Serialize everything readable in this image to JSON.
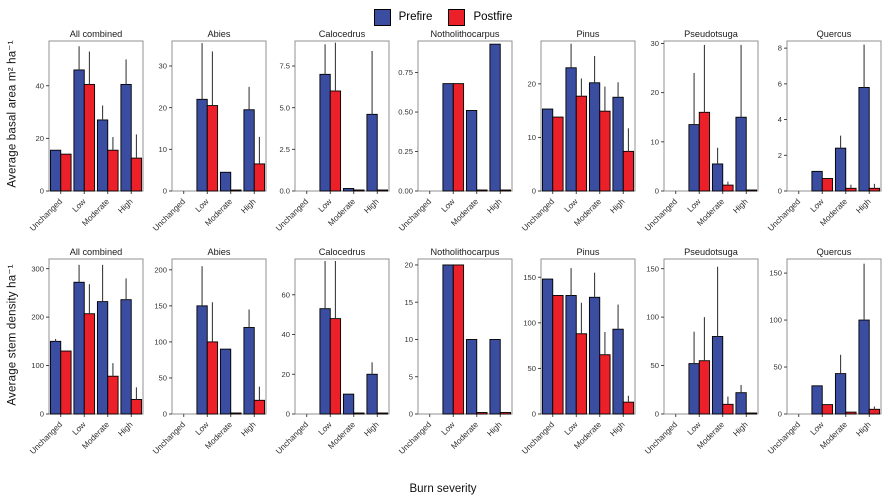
{
  "labels": {
    "x_label": "Burn severity",
    "row1_y": "Average basal area  m² ha⁻¹",
    "row2_y": "Average stem density ha⁻¹"
  },
  "legend": {
    "items": [
      {
        "label": "Prefire",
        "color": "#3b4da1"
      },
      {
        "label": "Postfire",
        "color": "#ec2028"
      }
    ]
  },
  "style": {
    "bar_stroke": "#000000",
    "error_color": "#3c3c3c",
    "panel_border": "#919191",
    "tick_color": "#333333",
    "text_color": "#1a1a1a"
  },
  "categories": [
    "Unchanged",
    "Low",
    "Moderate",
    "High"
  ],
  "chart_data": [
    {
      "type": "bar",
      "row": 1,
      "title": "All combined",
      "ylabel": "Average basal area m2/ha",
      "ylim": [
        0,
        57
      ],
      "yticks": [
        0,
        20,
        40
      ],
      "ytick_labels": [
        "0",
        "20",
        "40"
      ],
      "series": [
        {
          "name": "Prefire",
          "values": [
            15.5,
            46,
            27,
            40.5
          ],
          "errors_upper": [
            null,
            55,
            32.5,
            50
          ]
        },
        {
          "name": "Postfire",
          "values": [
            14,
            40.5,
            15.5,
            12.5
          ],
          "errors_upper": [
            null,
            53,
            20.5,
            21.5
          ]
        }
      ]
    },
    {
      "type": "bar",
      "row": 1,
      "title": "Abies",
      "ylim": [
        0,
        36
      ],
      "yticks": [
        0,
        10,
        20,
        30
      ],
      "ytick_labels": [
        "0",
        "10",
        "20",
        "30"
      ],
      "series": [
        {
          "name": "Prefire",
          "values": [
            0,
            22,
            4.5,
            19.5
          ],
          "errors_upper": [
            null,
            35.5,
            null,
            25
          ]
        },
        {
          "name": "Postfire",
          "values": [
            0,
            20.5,
            0.2,
            6.5
          ],
          "errors_upper": [
            null,
            33.5,
            null,
            13
          ]
        }
      ]
    },
    {
      "type": "bar",
      "row": 1,
      "title": "Calocedrus",
      "ylim": [
        0,
        9
      ],
      "yticks": [
        0,
        2.5,
        5,
        7.5
      ],
      "ytick_labels": [
        "0.0",
        "2.5",
        "5.0",
        "7.5"
      ],
      "series": [
        {
          "name": "Prefire",
          "values": [
            0,
            7,
            0.15,
            4.6
          ],
          "errors_upper": [
            null,
            8.8,
            null,
            8.4
          ]
        },
        {
          "name": "Postfire",
          "values": [
            0,
            6,
            0.05,
            0.05
          ],
          "errors_upper": [
            null,
            8.9,
            null,
            null
          ]
        }
      ]
    },
    {
      "type": "bar",
      "row": 1,
      "title": "Notholithocarpus",
      "ylim": [
        0,
        0.95
      ],
      "yticks": [
        0,
        0.25,
        0.5,
        0.75
      ],
      "ytick_labels": [
        "0.00",
        "0.25",
        "0.50",
        "0.75"
      ],
      "series": [
        {
          "name": "Prefire",
          "values": [
            0,
            0.68,
            0.51,
            0.93
          ],
          "errors_upper": [
            null,
            null,
            null,
            null
          ]
        },
        {
          "name": "Postfire",
          "values": [
            0,
            0.68,
            0.005,
            0.005
          ],
          "errors_upper": [
            null,
            null,
            null,
            null
          ]
        }
      ]
    },
    {
      "type": "bar",
      "row": 1,
      "title": "Pinus",
      "ylim": [
        0,
        28
      ],
      "yticks": [
        0,
        10,
        20
      ],
      "ytick_labels": [
        "0",
        "10",
        "20"
      ],
      "series": [
        {
          "name": "Prefire",
          "values": [
            15.3,
            23,
            20.2,
            17.5
          ],
          "errors_upper": [
            null,
            27.5,
            25.2,
            20.3
          ]
        },
        {
          "name": "Postfire",
          "values": [
            13.8,
            17.7,
            14.9,
            7.4
          ],
          "errors_upper": [
            null,
            21,
            19.5,
            11.7
          ]
        }
      ]
    },
    {
      "type": "bar",
      "row": 1,
      "title": "Pseudotsuga",
      "ylim": [
        0,
        30.5
      ],
      "yticks": [
        0,
        10,
        20,
        30
      ],
      "ytick_labels": [
        "0",
        "10",
        "20",
        "30"
      ],
      "series": [
        {
          "name": "Prefire",
          "values": [
            0,
            13.5,
            5.5,
            15
          ],
          "errors_upper": [
            null,
            24,
            8.8,
            29.7
          ]
        },
        {
          "name": "Postfire",
          "values": [
            0,
            16,
            1.2,
            0.1
          ],
          "errors_upper": [
            null,
            29.7,
            1.9,
            null
          ]
        }
      ]
    },
    {
      "type": "bar",
      "row": 1,
      "title": "Quercus",
      "ylim": [
        0,
        8.4
      ],
      "yticks": [
        0,
        2,
        4,
        6,
        8
      ],
      "ytick_labels": [
        "0",
        "2",
        "4",
        "6",
        "8"
      ],
      "series": [
        {
          "name": "Prefire",
          "values": [
            0,
            1.1,
            2.4,
            5.8
          ],
          "errors_upper": [
            null,
            null,
            3.1,
            8.2
          ]
        },
        {
          "name": "Postfire",
          "values": [
            0,
            0.7,
            0.15,
            0.15
          ],
          "errors_upper": [
            null,
            null,
            0.35,
            0.4
          ]
        }
      ]
    },
    {
      "type": "bar",
      "row": 2,
      "title": "All combined",
      "ylabel": "Average stem density /ha",
      "ylim": [
        0,
        320
      ],
      "yticks": [
        0,
        100,
        200,
        300
      ],
      "ytick_labels": [
        "0",
        "100",
        "200",
        "300"
      ],
      "series": [
        {
          "name": "Prefire",
          "values": [
            150,
            272,
            232,
            236
          ],
          "errors_upper": [
            155,
            308,
            308,
            280
          ]
        },
        {
          "name": "Postfire",
          "values": [
            130,
            207,
            78,
            30
          ],
          "errors_upper": [
            null,
            268,
            105,
            55
          ]
        }
      ]
    },
    {
      "type": "bar",
      "row": 2,
      "title": "Abies",
      "ylim": [
        0,
        215
      ],
      "yticks": [
        0,
        50,
        100,
        150,
        200
      ],
      "ytick_labels": [
        "0",
        "50",
        "100",
        "150",
        "200"
      ],
      "series": [
        {
          "name": "Prefire",
          "values": [
            0,
            150,
            90,
            120
          ],
          "errors_upper": [
            null,
            205,
            null,
            145
          ]
        },
        {
          "name": "Postfire",
          "values": [
            0,
            100,
            1,
            19
          ],
          "errors_upper": [
            null,
            155,
            null,
            38
          ]
        }
      ]
    },
    {
      "type": "bar",
      "row": 2,
      "title": "Calocedrus",
      "ylim": [
        0,
        78
      ],
      "yticks": [
        0,
        20,
        40,
        60
      ],
      "ytick_labels": [
        "0",
        "20",
        "40",
        "60"
      ],
      "series": [
        {
          "name": "Prefire",
          "values": [
            0,
            53,
            10,
            20
          ],
          "errors_upper": [
            null,
            77,
            null,
            26
          ]
        },
        {
          "name": "Postfire",
          "values": [
            0,
            48,
            0.5,
            0.5
          ],
          "errors_upper": [
            null,
            77,
            null,
            null
          ]
        }
      ]
    },
    {
      "type": "bar",
      "row": 2,
      "title": "Notholithocarpus",
      "ylim": [
        0,
        20.8
      ],
      "yticks": [
        0,
        5,
        10,
        15,
        20
      ],
      "ytick_labels": [
        "0",
        "5",
        "10",
        "15",
        "20"
      ],
      "series": [
        {
          "name": "Prefire",
          "values": [
            0,
            20,
            10,
            10
          ],
          "errors_upper": [
            null,
            null,
            null,
            null
          ]
        },
        {
          "name": "Postfire",
          "values": [
            0,
            20,
            0.2,
            0.2
          ],
          "errors_upper": [
            null,
            null,
            null,
            null
          ]
        }
      ]
    },
    {
      "type": "bar",
      "row": 2,
      "title": "Pinus",
      "ylim": [
        0,
        170
      ],
      "yticks": [
        0,
        50,
        100,
        150
      ],
      "ytick_labels": [
        "0",
        "50",
        "100",
        "150"
      ],
      "series": [
        {
          "name": "Prefire",
          "values": [
            148,
            130,
            128,
            93
          ],
          "errors_upper": [
            null,
            160,
            155,
            120
          ]
        },
        {
          "name": "Postfire",
          "values": [
            130,
            88,
            65,
            13
          ],
          "errors_upper": [
            null,
            122,
            90,
            20
          ]
        }
      ]
    },
    {
      "type": "bar",
      "row": 2,
      "title": "Pseudotsuga",
      "ylim": [
        0,
        160
      ],
      "yticks": [
        0,
        50,
        100,
        150
      ],
      "ytick_labels": [
        "0",
        "50",
        "100",
        "150"
      ],
      "series": [
        {
          "name": "Prefire",
          "values": [
            0,
            52,
            80,
            22
          ],
          "errors_upper": [
            null,
            85,
            152,
            30
          ]
        },
        {
          "name": "Postfire",
          "values": [
            0,
            55,
            10,
            1
          ],
          "errors_upper": [
            null,
            100,
            18,
            null
          ]
        }
      ]
    },
    {
      "type": "bar",
      "row": 2,
      "title": "Quercus",
      "ylim": [
        0,
        165
      ],
      "yticks": [
        0,
        50,
        100,
        150
      ],
      "ytick_labels": [
        "0",
        "50",
        "100",
        "150"
      ],
      "series": [
        {
          "name": "Prefire",
          "values": [
            0,
            30,
            43,
            100
          ],
          "errors_upper": [
            null,
            null,
            63,
            160
          ]
        },
        {
          "name": "Postfire",
          "values": [
            0,
            10,
            2,
            5
          ],
          "errors_upper": [
            null,
            null,
            null,
            8
          ]
        }
      ]
    }
  ]
}
